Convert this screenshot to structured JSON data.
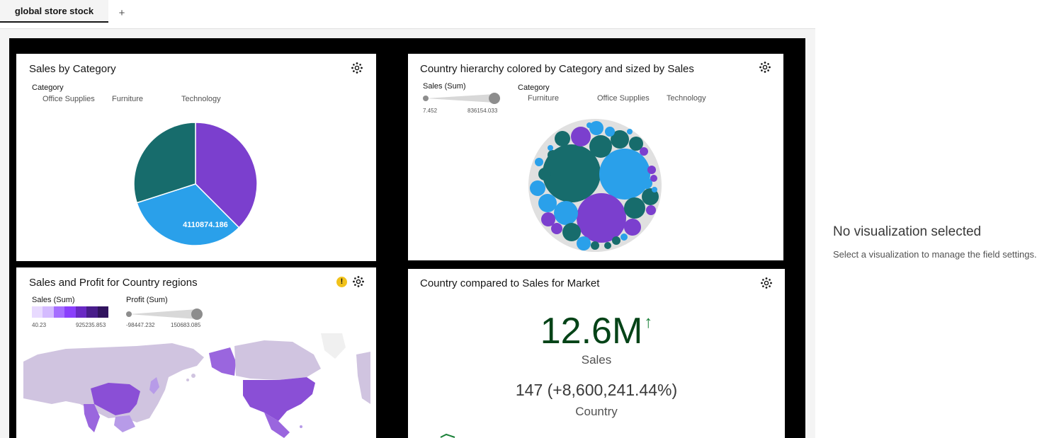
{
  "tabs": [
    {
      "label": "global store stock"
    }
  ],
  "tab_add_label": "+",
  "widgets": {
    "sales_by_category": {
      "title": "Sales by Category",
      "legend_title": "Category",
      "legend_items": [
        "Office Supplies",
        "Furniture",
        "Technology"
      ],
      "data_label": "4110874.186"
    },
    "country_hierarchy": {
      "title": "Country hierarchy colored by Category and sized by Sales",
      "size_legend_title": "Sales (Sum)",
      "size_min": "7.452",
      "size_max": "836154.033",
      "color_legend_title": "Category",
      "legend_items": [
        "Furniture",
        "Office Supplies",
        "Technology"
      ]
    },
    "sales_profit_map": {
      "title": "Sales and Profit for Country regions",
      "warning_icon": "warning-icon",
      "color_legend_title": "Sales (Sum)",
      "color_min": "40.23",
      "color_max": "925235.853",
      "size_legend_title": "Profit (Sum)",
      "size_min": "-98447.232",
      "size_max": "150683.085",
      "color_ramp": [
        "#e8daff",
        "#d4bbff",
        "#a56eff",
        "#8a3ffc",
        "#6929c4",
        "#491d8b",
        "#31135e"
      ]
    },
    "kpi": {
      "title": "Country compared to Sales for Market",
      "value": "12.6M",
      "trend_glyph": "↑",
      "value_label": "Sales",
      "comparison": "147 (+8,600,241.44%)",
      "comparison_label": "Country"
    }
  },
  "right_panel": {
    "title": "No visualization selected",
    "description": "Select a visualization to manage the field settings."
  },
  "chart_data": [
    {
      "type": "pie",
      "title": "Sales by Category",
      "categories": [
        "Technology",
        "Furniture",
        "Office Supplies"
      ],
      "values": [
        4744557.5,
        4110874.186,
        3787070.2
      ],
      "colors": [
        "#7b3fce",
        "#2aa0ea",
        "#176c6c"
      ],
      "legend_title": "Category"
    }
  ],
  "colors": {
    "purple": "#7b3fce",
    "blue": "#2aa0ea",
    "teal": "#176c6c",
    "kpi_green": "#044317"
  }
}
